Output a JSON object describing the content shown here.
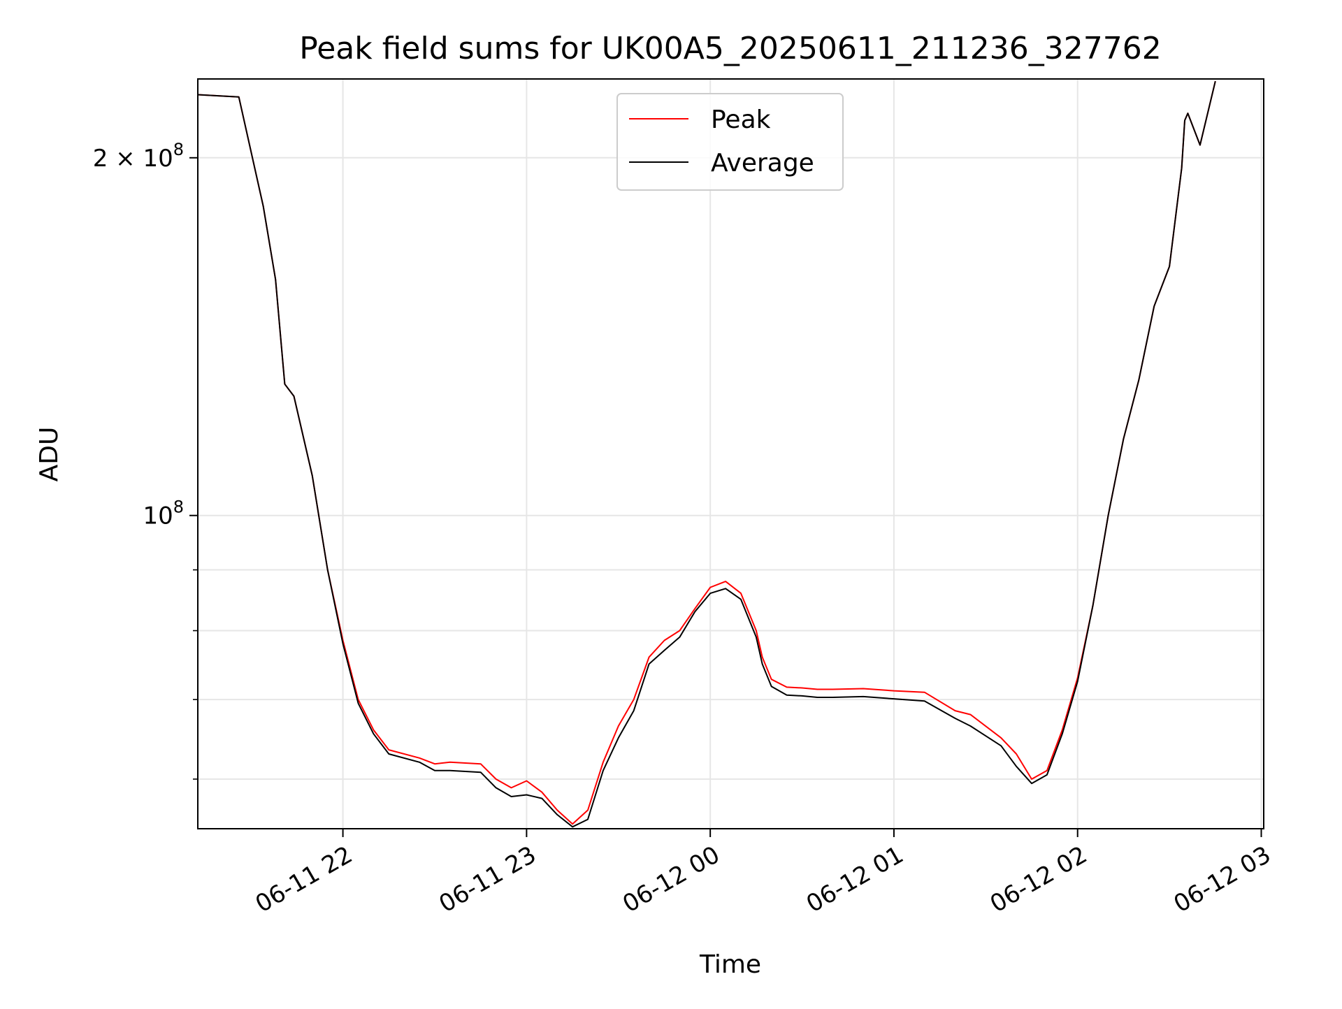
{
  "chart_data": {
    "type": "line",
    "title": "Peak field sums for UK00A5_20250611_211236_327762",
    "xlabel": "Time",
    "ylabel": "ADU",
    "y_scale": "log",
    "ylim": [
      54500000,
      233000000
    ],
    "xlim": [
      "2025-06-11T21:12:36",
      "2025-06-12T03:00:48"
    ],
    "grid": true,
    "legend": "upper center",
    "x_ticks": [
      {
        "value": "2025-06-11T22:00:00",
        "label": "06-11 22"
      },
      {
        "value": "2025-06-11T23:00:00",
        "label": "06-11 23"
      },
      {
        "value": "2025-06-12T00:00:00",
        "label": "06-12 00"
      },
      {
        "value": "2025-06-12T01:00:00",
        "label": "06-12 01"
      },
      {
        "value": "2025-06-12T02:00:00",
        "label": "06-12 02"
      },
      {
        "value": "2025-06-12T03:00:00",
        "label": "06-12 03"
      }
    ],
    "y_major_ticks": [
      {
        "value": 100000000,
        "label_base": "10",
        "label_exp": "8"
      },
      {
        "value": 200000000,
        "label_base": "2 × 10",
        "label_exp": "8"
      }
    ],
    "y_minor_ticks": [
      60000000,
      70000000,
      80000000,
      90000000
    ],
    "series": [
      {
        "name": "Peak",
        "color": "#ff0000",
        "x": [
          "2025-06-11T21:12:36",
          "2025-06-11T21:26:00",
          "2025-06-11T21:34:00",
          "2025-06-11T21:38:00",
          "2025-06-11T21:40:00",
          "2025-06-11T21:41:00",
          "2025-06-11T21:44:00",
          "2025-06-11T21:50:00",
          "2025-06-11T21:55:00",
          "2025-06-11T22:00:00",
          "2025-06-11T22:05:00",
          "2025-06-11T22:10:00",
          "2025-06-11T22:15:00",
          "2025-06-11T22:25:00",
          "2025-06-11T22:30:00",
          "2025-06-11T22:35:00",
          "2025-06-11T22:45:00",
          "2025-06-11T22:50:00",
          "2025-06-11T22:55:00",
          "2025-06-11T23:00:00",
          "2025-06-11T23:05:00",
          "2025-06-11T23:10:00",
          "2025-06-11T23:15:00",
          "2025-06-11T23:20:00",
          "2025-06-11T23:25:00",
          "2025-06-11T23:30:00",
          "2025-06-11T23:35:00",
          "2025-06-11T23:40:00",
          "2025-06-11T23:45:00",
          "2025-06-11T23:50:00",
          "2025-06-11T23:55:00",
          "2025-06-12T00:00:00",
          "2025-06-12T00:05:00",
          "2025-06-12T00:10:00",
          "2025-06-12T00:15:00",
          "2025-06-12T00:17:00",
          "2025-06-12T00:20:00",
          "2025-06-12T00:25:00",
          "2025-06-12T00:30:00",
          "2025-06-12T00:35:00",
          "2025-06-12T00:40:00",
          "2025-06-12T00:50:00",
          "2025-06-12T01:00:00",
          "2025-06-12T01:10:00",
          "2025-06-12T01:20:00",
          "2025-06-12T01:25:00",
          "2025-06-12T01:35:00",
          "2025-06-12T01:40:00",
          "2025-06-12T01:45:00",
          "2025-06-12T01:50:00",
          "2025-06-12T01:55:00",
          "2025-06-12T02:00:00",
          "2025-06-12T02:05:00",
          "2025-06-12T02:10:00",
          "2025-06-12T02:15:00",
          "2025-06-12T02:20:00",
          "2025-06-12T02:25:00",
          "2025-06-12T02:30:00",
          "2025-06-12T02:34:00",
          "2025-06-12T02:35:00",
          "2025-06-12T02:36:00",
          "2025-06-12T02:40:00",
          "2025-06-12T02:45:00"
        ],
        "y": [
          226000000,
          225000000,
          182000000,
          158000000,
          138000000,
          129000000,
          126000000,
          108000000,
          90000000,
          78500000,
          70000000,
          66000000,
          63500000,
          62500000,
          61800000,
          62000000,
          61800000,
          60000000,
          59000000,
          59800000,
          58500000,
          56500000,
          55000000,
          56500000,
          62000000,
          66500000,
          70000000,
          76000000,
          78500000,
          80000000,
          83500000,
          87000000,
          88000000,
          86000000,
          80000000,
          76000000,
          72800000,
          71700000,
          71600000,
          71400000,
          71400000,
          71500000,
          71200000,
          71000000,
          68500000,
          68000000,
          65000000,
          63000000,
          60000000,
          61000000,
          66000000,
          73000000,
          84000000,
          100000000,
          116000000,
          130000000,
          150000000,
          162000000,
          196000000,
          215000000,
          218000000,
          205000000,
          232000000
        ]
      },
      {
        "name": "Average",
        "color": "#000000",
        "x": [
          "2025-06-11T21:12:36",
          "2025-06-11T21:26:00",
          "2025-06-11T21:34:00",
          "2025-06-11T21:38:00",
          "2025-06-11T21:40:00",
          "2025-06-11T21:41:00",
          "2025-06-11T21:44:00",
          "2025-06-11T21:50:00",
          "2025-06-11T21:55:00",
          "2025-06-11T22:00:00",
          "2025-06-11T22:05:00",
          "2025-06-11T22:10:00",
          "2025-06-11T22:15:00",
          "2025-06-11T22:25:00",
          "2025-06-11T22:30:00",
          "2025-06-11T22:35:00",
          "2025-06-11T22:45:00",
          "2025-06-11T22:50:00",
          "2025-06-11T22:55:00",
          "2025-06-11T23:00:00",
          "2025-06-11T23:05:00",
          "2025-06-11T23:10:00",
          "2025-06-11T23:15:00",
          "2025-06-11T23:20:00",
          "2025-06-11T23:25:00",
          "2025-06-11T23:30:00",
          "2025-06-11T23:35:00",
          "2025-06-11T23:40:00",
          "2025-06-11T23:45:00",
          "2025-06-11T23:50:00",
          "2025-06-11T23:55:00",
          "2025-06-12T00:00:00",
          "2025-06-12T00:05:00",
          "2025-06-12T00:10:00",
          "2025-06-12T00:15:00",
          "2025-06-12T00:17:00",
          "2025-06-12T00:20:00",
          "2025-06-12T00:25:00",
          "2025-06-12T00:30:00",
          "2025-06-12T00:35:00",
          "2025-06-12T00:40:00",
          "2025-06-12T00:50:00",
          "2025-06-12T01:00:00",
          "2025-06-12T01:10:00",
          "2025-06-12T01:20:00",
          "2025-06-12T01:25:00",
          "2025-06-12T01:35:00",
          "2025-06-12T01:40:00",
          "2025-06-12T01:45:00",
          "2025-06-12T01:50:00",
          "2025-06-12T01:55:00",
          "2025-06-12T02:00:00",
          "2025-06-12T02:05:00",
          "2025-06-12T02:10:00",
          "2025-06-12T02:15:00",
          "2025-06-12T02:20:00",
          "2025-06-12T02:25:00",
          "2025-06-12T02:30:00",
          "2025-06-12T02:34:00",
          "2025-06-12T02:35:00",
          "2025-06-12T02:36:00",
          "2025-06-12T02:40:00",
          "2025-06-12T02:45:00"
        ],
        "y": [
          226000000,
          225000000,
          182000000,
          158000000,
          138000000,
          129000000,
          126000000,
          108000000,
          90000000,
          78000000,
          69500000,
          65500000,
          63000000,
          62000000,
          61000000,
          61000000,
          60800000,
          59000000,
          58000000,
          58200000,
          57800000,
          56000000,
          54700000,
          55500000,
          61000000,
          65000000,
          68500000,
          75000000,
          77000000,
          79000000,
          83000000,
          86000000,
          86800000,
          85000000,
          79000000,
          75000000,
          71800000,
          70600000,
          70500000,
          70300000,
          70300000,
          70400000,
          70100000,
          69800000,
          67500000,
          66500000,
          64000000,
          61500000,
          59500000,
          60500000,
          65500000,
          72500000,
          84000000,
          100000000,
          116000000,
          130000000,
          150000000,
          162000000,
          196000000,
          215000000,
          218000000,
          205000000,
          232000000
        ]
      }
    ]
  }
}
